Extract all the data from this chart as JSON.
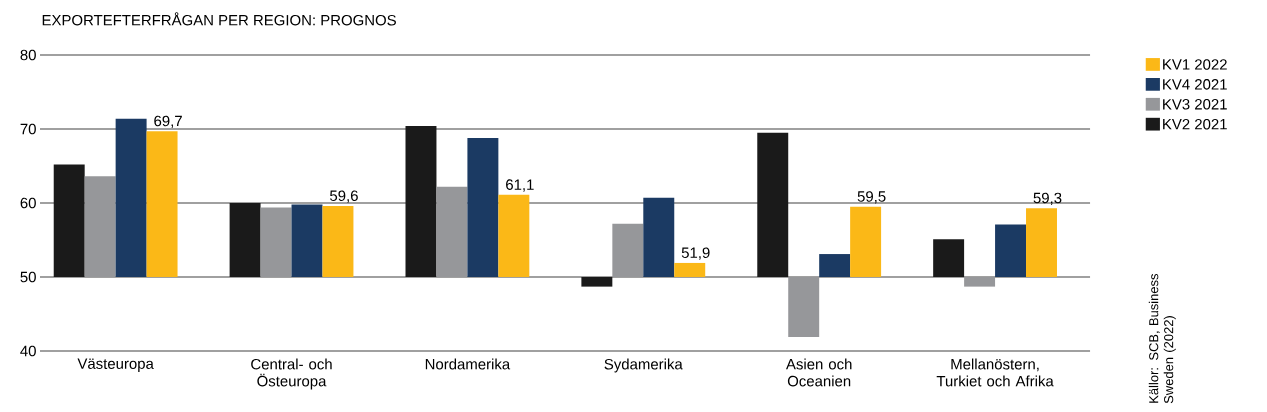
{
  "chart_data": {
    "type": "bar",
    "title": "EXPORTEFTERFRÅGAN PER REGION: PROGNOS",
    "categories": [
      "Västeuropa",
      "Central- och Östeuropa",
      "Nordamerika",
      "Sydamerika",
      "Asien och Oceanien",
      "Mellanöstern, Turkiet och Afrika"
    ],
    "series": [
      {
        "name": "KV2 2021",
        "color": "#1a1a1a",
        "base": [
          50,
          50,
          50,
          50,
          50,
          50
        ],
        "values": [
          15.2,
          10.0,
          20.4,
          -1.3,
          19.5,
          5.1
        ]
      },
      {
        "name": "KV3 2021",
        "color": "#96979a",
        "base": [
          50,
          50,
          50,
          50,
          50,
          50
        ],
        "values": [
          13.6,
          9.4,
          12.2,
          7.2,
          -8.1,
          -1.3
        ]
      },
      {
        "name": "KV4 2021",
        "color": "#1b3a63",
        "base": [
          50,
          50,
          50,
          50,
          50,
          50
        ],
        "values": [
          21.4,
          9.8,
          18.8,
          10.7,
          3.1,
          7.1
        ]
      },
      {
        "name": "KV1 2022",
        "color": "#fbb817",
        "base": [
          50,
          50,
          50,
          50,
          50,
          50
        ],
        "values": [
          19.7,
          9.6,
          11.1,
          1.9,
          9.5,
          9.3
        ],
        "value_labels": [
          "69,7",
          "59,6",
          "61,1",
          "51,9",
          "59,5",
          "59,3"
        ]
      }
    ],
    "ylim": [
      40,
      80
    ],
    "yticks": [
      40,
      50,
      60,
      70,
      80
    ],
    "grid": "y",
    "legend": "right",
    "annotations": [
      "Källor: SCB, Business Sweden (2022)"
    ]
  }
}
